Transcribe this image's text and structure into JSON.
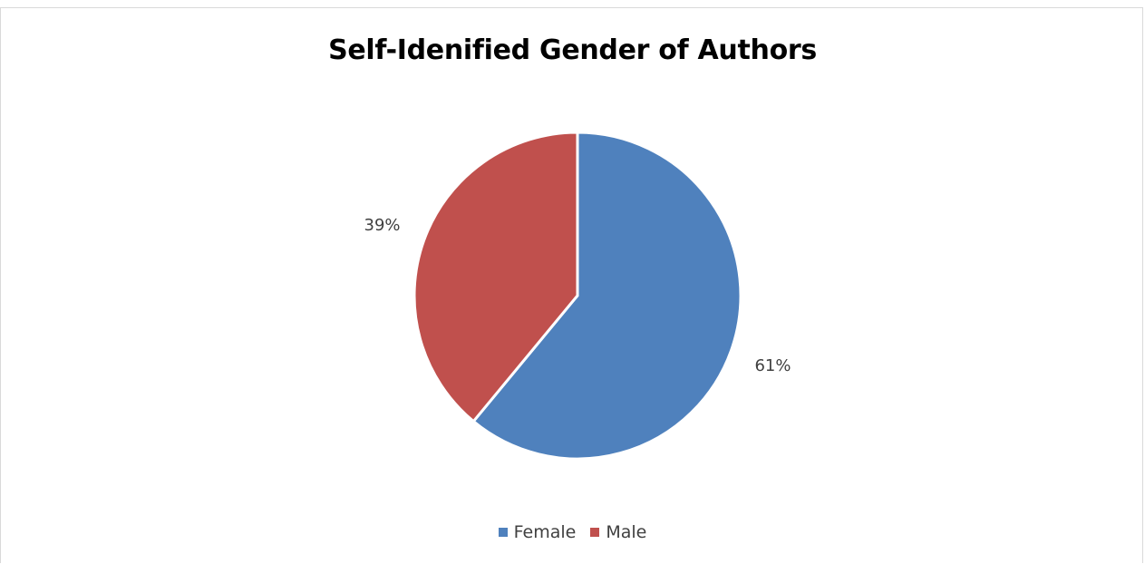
{
  "chart_data": {
    "type": "pie",
    "title": "Self-Idenified Gender of Authors",
    "categories": [
      "Female",
      "Male"
    ],
    "values": [
      61,
      39
    ],
    "data_labels": [
      "61%",
      "39%"
    ],
    "colors": [
      "#4f81bd",
      "#c0504d"
    ],
    "start_angle_deg": 0,
    "direction": "clockwise",
    "legend_position": "bottom",
    "slice_border_color": "#ffffff"
  }
}
